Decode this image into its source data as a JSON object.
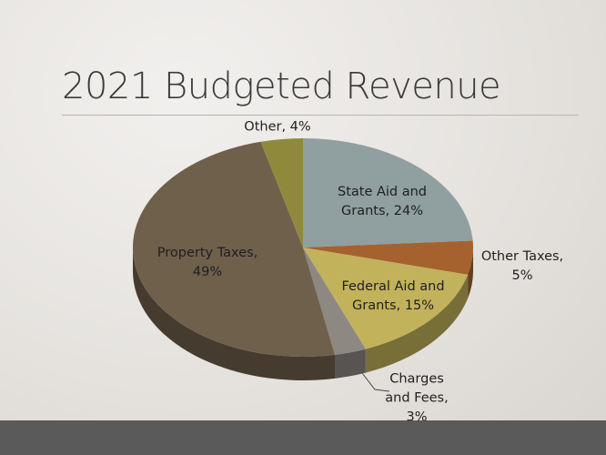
{
  "chart_data": {
    "type": "pie",
    "title": "2021 Budgeted Revenue",
    "values": [
      24,
      5,
      15,
      3,
      49,
      4
    ],
    "value_labels": [
      "State Aid and Grants, 24%",
      "Other Taxes, 5%",
      "Federal Aid and Grants, 15%",
      "Charges and Fees, 3%",
      "Property Taxes, 49%",
      "Other, 4%"
    ],
    "colors": [
      "#909fa0",
      "#a5622f",
      "#c2b25b",
      "#8e8883",
      "#6f604c",
      "#8f8a3b"
    ],
    "start_angle": 0,
    "direction": "clockwise",
    "three_d": true
  }
}
